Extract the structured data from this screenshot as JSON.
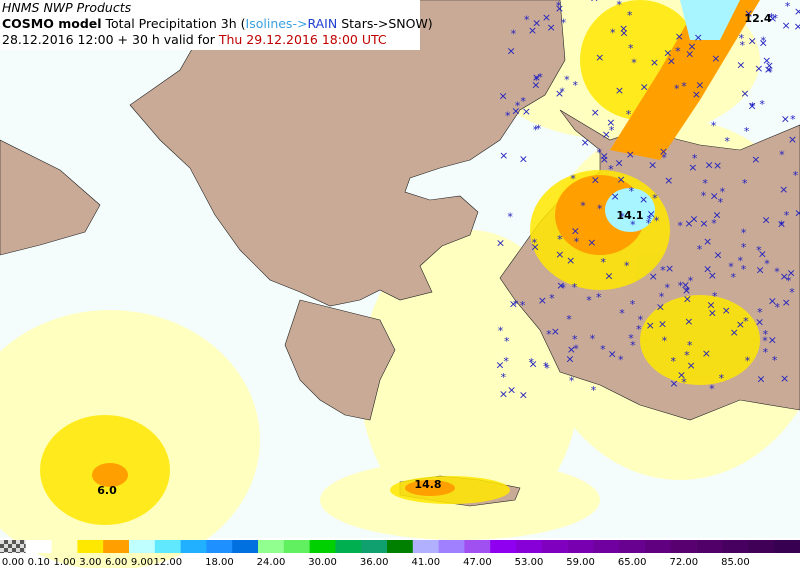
{
  "header": {
    "product": "HNMS NWP Products",
    "model": "COSMO model",
    "field": " Total Precipitation 3h (",
    "isolines": "Isolines->",
    "rain": "RAIN",
    "snow": " Stars->SNOW)",
    "run": "28.12.2016 12:00 + 30 h valid for ",
    "valid": "Thu 29.12.2016 18:00 UTC"
  },
  "annotations": [
    "12.4",
    "14.1",
    "14.8",
    "6.0"
  ],
  "legend": {
    "colors": [
      "#ffffff",
      "#ffffc0",
      "#ffe800",
      "#ffa000",
      "#c0ffff",
      "#60e8ff",
      "#20b0ff",
      "#1e90ff",
      "#0070e0",
      "#90ff90",
      "#60f060",
      "#00d000",
      "#00b050",
      "#10a070",
      "#008000",
      "#b0b0ff",
      "#a080ff",
      "#a050f0",
      "#9000f0",
      "#8800d8",
      "#8000c0",
      "#7800b0",
      "#7000a0",
      "#680090",
      "#600080",
      "#580070",
      "#500068",
      "#480060",
      "#400058",
      "#380050"
    ],
    "labels": [
      "0.00",
      "0.10",
      "1.00",
      "3.00",
      "6.00",
      "9.00",
      "12.00",
      "18.00",
      "24.00",
      "30.00",
      "36.00",
      "41.00",
      "47.00",
      "53.00",
      "59.00",
      "65.00",
      "72.00",
      "85.00"
    ]
  }
}
